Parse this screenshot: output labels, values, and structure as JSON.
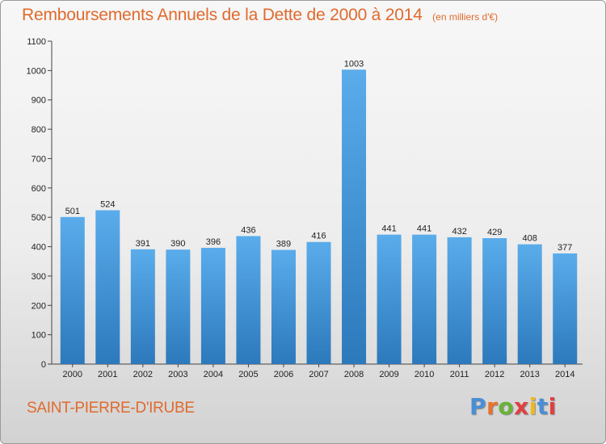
{
  "header": {
    "title": "Remboursements Annuels de la Dette de 2000 à 2014",
    "subtitle": "(en milliers d'€)"
  },
  "footer": {
    "place": "SAINT-PIERRE-D'IRUBE",
    "brand": "Proxiti",
    "brand_colors": [
      "#4a8fd6",
      "#e8732c",
      "#68b33a",
      "#e04040",
      "#f0b820",
      "#4a8fd6",
      "#e04040"
    ]
  },
  "colors": {
    "accent": "#e06a2c",
    "bar_top": "#5aaceb",
    "bar_bottom": "#2c79bc"
  },
  "chart_data": {
    "type": "bar",
    "title": "Remboursements Annuels de la Dette de 2000 à 2014",
    "subtitle": "(en milliers d'€)",
    "xlabel": "",
    "ylabel": "",
    "categories": [
      "2000",
      "2001",
      "2002",
      "2003",
      "2004",
      "2005",
      "2006",
      "2007",
      "2008",
      "2009",
      "2010",
      "2011",
      "2012",
      "2013",
      "2014"
    ],
    "values": [
      501,
      524,
      391,
      390,
      396,
      436,
      389,
      416,
      1003,
      441,
      441,
      432,
      429,
      408,
      377
    ],
    "ylim": [
      0,
      1100
    ],
    "yticks": [
      0,
      100,
      200,
      300,
      400,
      500,
      600,
      700,
      800,
      900,
      1000,
      1100
    ],
    "grid": false,
    "legend": "none"
  }
}
